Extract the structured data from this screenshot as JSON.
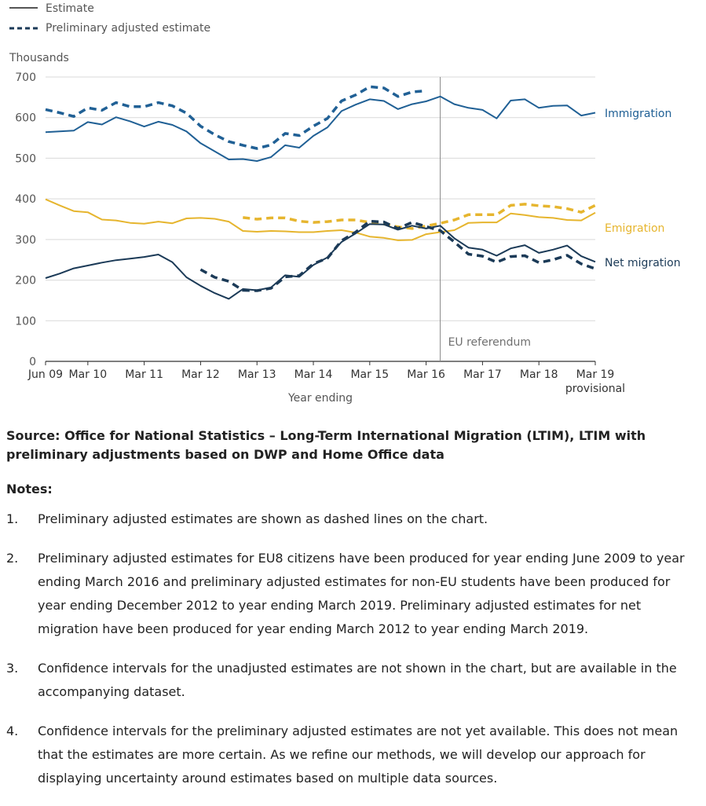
{
  "chart_data": {
    "type": "line",
    "ylabel": "Thousands",
    "xlabel": "Year ending",
    "ylim": [
      0,
      700
    ],
    "yticks": [
      0,
      100,
      200,
      300,
      400,
      500,
      600,
      700
    ],
    "gridlines": "horizontal",
    "x_tick_labels": [
      "Jun 09",
      "Mar 10",
      "Mar 11",
      "Mar 12",
      "Mar 13",
      "Mar 14",
      "Mar 15",
      "Mar 16",
      "Mar 17",
      "Mar 18",
      "Mar 19"
    ],
    "x_tick_sublabel": "provisional",
    "x_periods": [
      "Jun 09",
      "Sep 09",
      "Dec 09",
      "Mar 10",
      "Jun 10",
      "Sep 10",
      "Dec 10",
      "Mar 11",
      "Jun 11",
      "Sep 11",
      "Dec 11",
      "Mar 12",
      "Jun 12",
      "Sep 12",
      "Dec 12",
      "Mar 13",
      "Jun 13",
      "Sep 13",
      "Dec 13",
      "Mar 14",
      "Jun 14",
      "Sep 14",
      "Dec 14",
      "Mar 15",
      "Jun 15",
      "Sep 15",
      "Dec 15",
      "Mar 16",
      "Jun 16",
      "Sep 16",
      "Dec 16",
      "Mar 17",
      "Jun 17",
      "Sep 17",
      "Dec 17",
      "Mar 18",
      "Jun 18",
      "Sep 18",
      "Dec 18",
      "Mar 19"
    ],
    "legend": [
      {
        "label": "Estimate",
        "style": "solid"
      },
      {
        "label": "Preliminary adjusted estimate",
        "style": "dashed"
      }
    ],
    "legend_position": "top-left",
    "series": [
      {
        "name": "Immigration",
        "style": "solid",
        "color": "#206095",
        "values": [
          564,
          566,
          568,
          589,
          583,
          601,
          591,
          578,
          590,
          582,
          566,
          537,
          517,
          497,
          498,
          493,
          503,
          532,
          526,
          555,
          576,
          616,
          632,
          645,
          641,
          621,
          633,
          640,
          652,
          633,
          624,
          619,
          598,
          642,
          645,
          624,
          629,
          630,
          605,
          612
        ]
      },
      {
        "name": "Immigration",
        "style": "dashed",
        "color": "#206095",
        "values": [
          620,
          612,
          603,
          624,
          618,
          637,
          627,
          627,
          637,
          629,
          611,
          579,
          558,
          541,
          532,
          524,
          533,
          561,
          556,
          579,
          598,
          641,
          656,
          676,
          673,
          652,
          663,
          666,
          null,
          null,
          null,
          null,
          null,
          null,
          null,
          null,
          null,
          null,
          null,
          null
        ]
      },
      {
        "name": "Emigration",
        "style": "solid",
        "color": "#E6B52E",
        "values": [
          399,
          384,
          370,
          367,
          349,
          347,
          341,
          339,
          344,
          340,
          352,
          353,
          351,
          344,
          321,
          319,
          321,
          320,
          318,
          318,
          321,
          323,
          317,
          307,
          304,
          298,
          299,
          313,
          318,
          323,
          341,
          342,
          342,
          364,
          360,
          355,
          353,
          348,
          347,
          366
        ]
      },
      {
        "name": "Emigration",
        "style": "dashed",
        "color": "#E6B52E",
        "values": [
          null,
          null,
          null,
          null,
          null,
          null,
          null,
          null,
          null,
          null,
          null,
          null,
          null,
          null,
          354,
          350,
          353,
          353,
          345,
          342,
          344,
          348,
          348,
          342,
          338,
          331,
          327,
          333,
          340,
          348,
          361,
          361,
          361,
          384,
          387,
          383,
          381,
          376,
          367,
          384
        ]
      },
      {
        "name": "Net migration",
        "style": "solid",
        "color": "#1B3A57",
        "values": [
          205,
          216,
          229,
          236,
          243,
          249,
          253,
          257,
          263,
          244,
          207,
          186,
          168,
          154,
          178,
          175,
          182,
          212,
          208,
          237,
          256,
          294,
          315,
          338,
          337,
          324,
          334,
          327,
          334,
          303,
          280,
          275,
          260,
          278,
          286,
          267,
          275,
          285,
          259,
          245
        ]
      },
      {
        "name": "Net migration",
        "style": "dashed",
        "color": "#1B3A57",
        "values": [
          null,
          null,
          null,
          null,
          null,
          null,
          null,
          null,
          null,
          null,
          null,
          226,
          207,
          197,
          175,
          174,
          180,
          208,
          211,
          240,
          254,
          297,
          318,
          345,
          343,
          327,
          342,
          332,
          322,
          294,
          264,
          259,
          244,
          258,
          260,
          243,
          250,
          261,
          240,
          228
        ]
      }
    ],
    "annotations": [
      {
        "label": "EU referendum",
        "x": "Jun 16"
      }
    ]
  },
  "series_labels": {
    "immigration": "Immigration",
    "emigration": "Emigration",
    "net_migration": "Net migration"
  },
  "source": "Source: Office for National Statistics – Long-Term International Migration (LTIM), LTIM with preliminary adjustments based on DWP and Home Office data",
  "notes": {
    "heading": "Notes:",
    "items": [
      {
        "num": "1.",
        "text": "Preliminary adjusted estimates are shown as dashed lines on the chart."
      },
      {
        "num": "2.",
        "text": "Preliminary adjusted estimates for EU8 citizens have been produced for year ending June 2009 to year ending March 2016 and preliminary adjusted estimates for non-EU students have been produced for year ending December 2012 to year ending March 2019. Preliminary adjusted estimates for net migration have been produced for year ending March 2012 to year ending March 2019."
      },
      {
        "num": "3.",
        "text": "Confidence intervals for the unadjusted estimates are not shown in the chart, but are available in the accompanying dataset."
      },
      {
        "num": "4.",
        "text": "Confidence intervals for the preliminary adjusted estimates are not yet available. This does not mean that the estimates are more certain. As we refine our methods, we will develop our approach for displaying uncertainty around estimates based on multiple data sources."
      }
    ]
  }
}
